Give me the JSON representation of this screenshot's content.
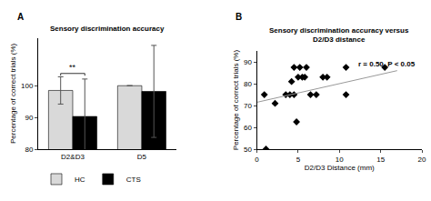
{
  "chart_data": [
    {
      "panel": "A",
      "type": "bar",
      "title": "Sensory discrimination accuracy",
      "y_label": "Percentage of correct trials (%)",
      "categories": [
        "D2&D3",
        "D5"
      ],
      "series": [
        {
          "name": "HC",
          "color": "#d9d9d9",
          "values": [
            98.5,
            100
          ],
          "errors": [
            4.3,
            0
          ]
        },
        {
          "name": "CTS",
          "color": "#000000",
          "values": [
            90.3,
            98.2
          ],
          "errors": [
            11.8,
            14.5
          ]
        }
      ],
      "ylim": [
        80,
        115
      ],
      "yticks": [
        80,
        90,
        100
      ],
      "legend": "bottom left",
      "annotations": [
        {
          "text": "**",
          "category": "D2&D3"
        }
      ]
    },
    {
      "panel": "B",
      "type": "scatter",
      "title": "Sensory discrimination accuracy versus\nD2/D3 distance",
      "x_label": "D2/D3 Distance (mm)",
      "y_label": "Percentage of correct trials (%)",
      "x": [
        0.9,
        1.1,
        2.2,
        3.5,
        4.0,
        4.2,
        4.5,
        4.5,
        4.8,
        5.0,
        5.2,
        5.5,
        5.8,
        6.0,
        6.5,
        7.2,
        8.0,
        8.5,
        10.8,
        10.8,
        15.5
      ],
      "values": [
        75,
        50,
        71,
        75,
        75,
        81,
        87.5,
        75,
        62.5,
        83,
        87.5,
        83,
        83,
        87.5,
        75,
        75,
        83,
        83,
        87.5,
        75,
        87.5
      ],
      "color": "#000000",
      "marker": "diamond",
      "fit": {
        "x": [
          0,
          17
        ],
        "values": [
          71.5,
          86
        ],
        "color": "#999999"
      },
      "xlim": [
        0,
        20
      ],
      "xticks": [
        0,
        5,
        10,
        15,
        20
      ],
      "ylim": [
        50,
        95
      ],
      "yticks": [
        50,
        60,
        70,
        80,
        90
      ],
      "annotations": [
        {
          "text": "r = 0.50, P < 0.05"
        }
      ]
    }
  ]
}
